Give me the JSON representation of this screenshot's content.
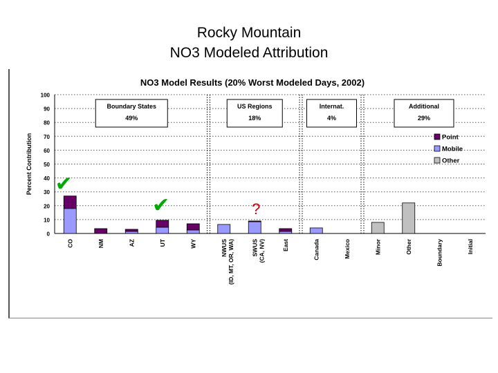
{
  "slide": {
    "title_line1": "Rocky Mountain",
    "title_line2": "NO3 Modeled Attribution"
  },
  "chart_data": {
    "type": "bar",
    "stacked": true,
    "title": "NO3 Model Results (20% Worst Modeled Days, 2002)",
    "ylabel": "Percent Contribution",
    "xlabel": "",
    "ylim": [
      0,
      100
    ],
    "yticks": [
      0,
      10,
      20,
      30,
      40,
      50,
      60,
      70,
      80,
      90,
      100
    ],
    "grid": "horizontal-dotted",
    "legend_position": "right",
    "categories": [
      {
        "label": "CO"
      },
      {
        "label": "NM"
      },
      {
        "label": "AZ"
      },
      {
        "label": "UT"
      },
      {
        "label": "WY"
      },
      {
        "label": "NWUS",
        "label2": "(ID, MT, OR, WA)"
      },
      {
        "label": "SWUS",
        "label2": "(CA, NV)"
      },
      {
        "label": "East"
      },
      {
        "label": "Canada"
      },
      {
        "label": "Mexico"
      },
      {
        "label": "Minor"
      },
      {
        "label": "Other"
      },
      {
        "label": "Boundary"
      },
      {
        "label": "Initial"
      }
    ],
    "series": [
      {
        "name": "Mobile",
        "color": "#9999ff",
        "values": [
          18,
          0,
          1.5,
          4.5,
          2.5,
          6.5,
          8.5,
          1.5,
          4,
          0,
          0,
          0,
          0,
          0
        ]
      },
      {
        "name": "Point",
        "color": "#660066",
        "values": [
          9,
          3.5,
          1.5,
          5,
          4.5,
          0,
          0.5,
          2,
          0,
          0,
          0,
          0,
          0,
          0
        ]
      },
      {
        "name": "Other",
        "color": "#c0c0c0",
        "values": [
          0,
          0,
          0,
          0,
          0,
          0,
          0,
          0,
          0,
          0,
          8,
          22,
          0,
          0
        ]
      }
    ],
    "groups": [
      {
        "name": "Boundary States",
        "value": "49%"
      },
      {
        "name": "US Regions",
        "value": "18%"
      },
      {
        "name": "Internat.",
        "value": "4%"
      },
      {
        "name": "Additional",
        "value": "29%"
      }
    ],
    "annotations": {
      "check_mark": "✔",
      "question_mark": "?",
      "marked_categories": [
        "CO",
        "UT"
      ],
      "questioned_category": "SWUS",
      "check_color": "#00aa00",
      "question_color": "#cc0000"
    }
  }
}
